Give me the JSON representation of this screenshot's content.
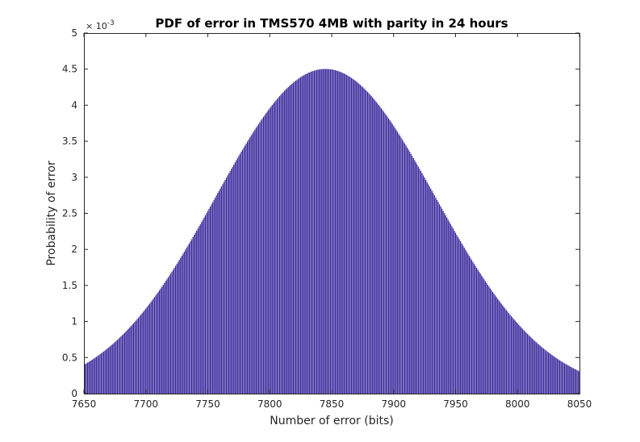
{
  "chart_data": {
    "type": "bar",
    "title": "PDF of error in TMS570 4MB with parity in 24 hours",
    "xlabel": "Number of error (bits)",
    "ylabel": "Probability of error",
    "xlim": [
      7650,
      8050
    ],
    "ylim": [
      0,
      0.005
    ],
    "x_ticks": [
      "7650",
      "7700",
      "7750",
      "7800",
      "7850",
      "7900",
      "7950",
      "8000",
      "8050"
    ],
    "y_ticks": [
      "0",
      "0.5",
      "1",
      "1.5",
      "2",
      "2.5",
      "3",
      "3.5",
      "4",
      "4.5",
      "5"
    ],
    "y_exponent": {
      "base": "× 10",
      "power": "-3"
    },
    "distribution": {
      "shape": "normal",
      "mean": 7845,
      "std_dev": 88.6
    },
    "x_start": 7650,
    "x_end": 8050,
    "x_step": 1,
    "bar_color": "#3a2a9c",
    "grid": false
  }
}
